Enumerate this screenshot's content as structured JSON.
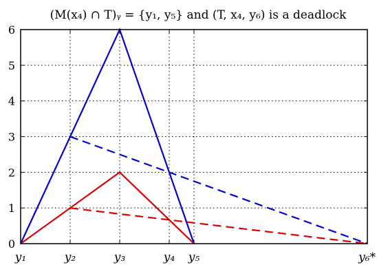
{
  "chart_data": {
    "type": "line",
    "title": "(M(x₄) ∩ T)ᵧ = {y₁, y₅} and (T, x₄, y₆) is a deadlock",
    "xlabel": "",
    "ylabel": "",
    "x_positions": {
      "y1": 0,
      "y2": 1,
      "y3": 2,
      "y4": 3,
      "y5": 3.5,
      "y6*": 7
    },
    "xticks": [
      {
        "x": 0,
        "label": "y₁"
      },
      {
        "x": 1,
        "label": "y₂"
      },
      {
        "x": 2,
        "label": "y₃"
      },
      {
        "x": 3,
        "label": "y₄"
      },
      {
        "x": 3.5,
        "label": "y₅"
      },
      {
        "x": 7,
        "label": "y₆*"
      }
    ],
    "yticks": [
      0,
      1,
      2,
      3,
      4,
      5,
      6
    ],
    "xlim": [
      0,
      7
    ],
    "ylim": [
      0,
      6
    ],
    "grid": true,
    "grid_x": [
      1,
      2,
      3,
      3.5
    ],
    "series": [
      {
        "color": "#0000dd",
        "style": "solid",
        "x": [
          0,
          2,
          3.5
        ],
        "y": [
          0,
          6,
          0
        ]
      },
      {
        "color": "#0000dd",
        "style": "dashed",
        "x": [
          1,
          7
        ],
        "y": [
          3,
          0
        ]
      },
      {
        "color": "#dd0000",
        "style": "solid",
        "x": [
          0,
          2,
          3.5
        ],
        "y": [
          0,
          2,
          0
        ]
      },
      {
        "color": "#dd0000",
        "style": "dashed",
        "x": [
          1,
          7
        ],
        "y": [
          1,
          0
        ]
      }
    ]
  }
}
